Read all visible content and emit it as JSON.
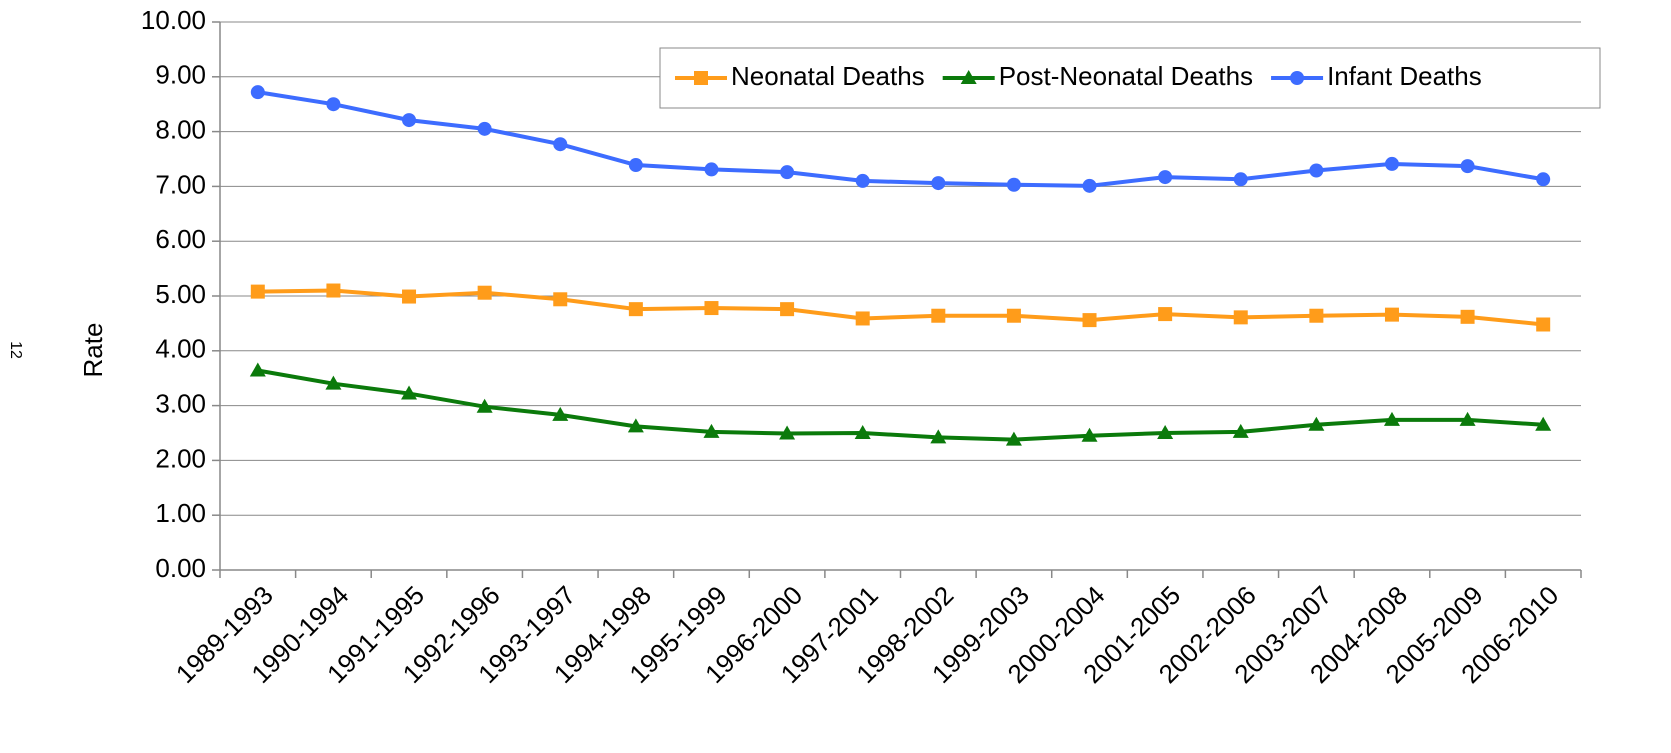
{
  "page_number": "12",
  "chart_data": {
    "type": "line",
    "y_label": "Rate",
    "categories": [
      "1989-1993",
      "1990-1994",
      "1991-1995",
      "1992-1996",
      "1993-1997",
      "1994-1998",
      "1995-1999",
      "1996-2000",
      "1997-2001",
      "1998-2002",
      "1999-2003",
      "2000-2004",
      "2001-2005",
      "2002-2006",
      "2003-2007",
      "2004-2008",
      "2005-2009",
      "2006-2010"
    ],
    "series": [
      {
        "name": "Neonatal Deaths",
        "color": "#ff9c1a",
        "marker": "square",
        "values": [
          5.08,
          5.1,
          4.99,
          5.06,
          4.94,
          4.76,
          4.78,
          4.76,
          4.59,
          4.64,
          4.64,
          4.56,
          4.67,
          4.61,
          4.64,
          4.66,
          4.62,
          4.48
        ]
      },
      {
        "name": "Post-Neonatal Deaths",
        "color": "#0b7a0b",
        "marker": "triangle",
        "values": [
          3.64,
          3.4,
          3.22,
          2.98,
          2.83,
          2.62,
          2.52,
          2.49,
          2.5,
          2.42,
          2.38,
          2.45,
          2.5,
          2.52,
          2.65,
          2.74,
          2.74,
          2.65
        ]
      },
      {
        "name": "Infant Deaths",
        "color": "#3d6cff",
        "marker": "circle",
        "values": [
          8.72,
          8.5,
          8.21,
          8.05,
          7.77,
          7.39,
          7.31,
          7.26,
          7.1,
          7.06,
          7.03,
          7.01,
          7.17,
          7.13,
          7.29,
          7.41,
          7.37,
          7.13
        ]
      }
    ],
    "ylim": [
      0,
      10
    ],
    "yticks": [
      {
        "value": 0,
        "label": "0.00"
      },
      {
        "value": 1,
        "label": "1.00"
      },
      {
        "value": 2,
        "label": "2.00"
      },
      {
        "value": 3,
        "label": "3.00"
      },
      {
        "value": 4,
        "label": "4.00"
      },
      {
        "value": 5,
        "label": "5.00"
      },
      {
        "value": 6,
        "label": "6.00"
      },
      {
        "value": 7,
        "label": "7.00"
      },
      {
        "value": 8,
        "label": "8.00"
      },
      {
        "value": 9,
        "label": "9.00"
      },
      {
        "value": 10,
        "label": "10.00"
      }
    ],
    "grid": true,
    "legend": "top-right"
  }
}
